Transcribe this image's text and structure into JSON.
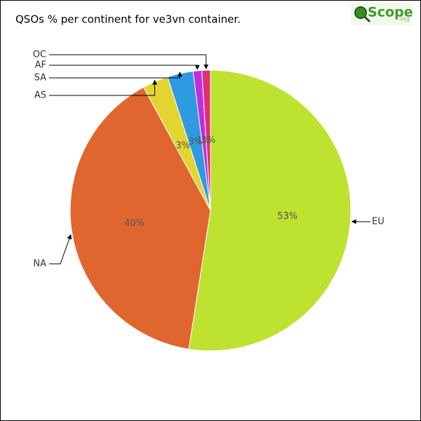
{
  "chart_data": {
    "type": "pie",
    "title": "QSOs % per continent for ve3vn container.",
    "logo": {
      "text": "Scope",
      "suffix": ".org"
    },
    "categories": [
      "EU",
      "NA",
      "AS",
      "SA",
      "AF",
      "OC"
    ],
    "values": [
      53,
      40,
      3,
      3,
      1,
      1
    ],
    "value_labels": [
      "53%",
      "40%",
      "3%",
      "3%",
      "1%",
      "1%"
    ],
    "colors": [
      "#bde22f",
      "#e0662f",
      "#e2d52f",
      "#2f9ae2",
      "#bf2fe2",
      "#e22f75"
    ]
  }
}
